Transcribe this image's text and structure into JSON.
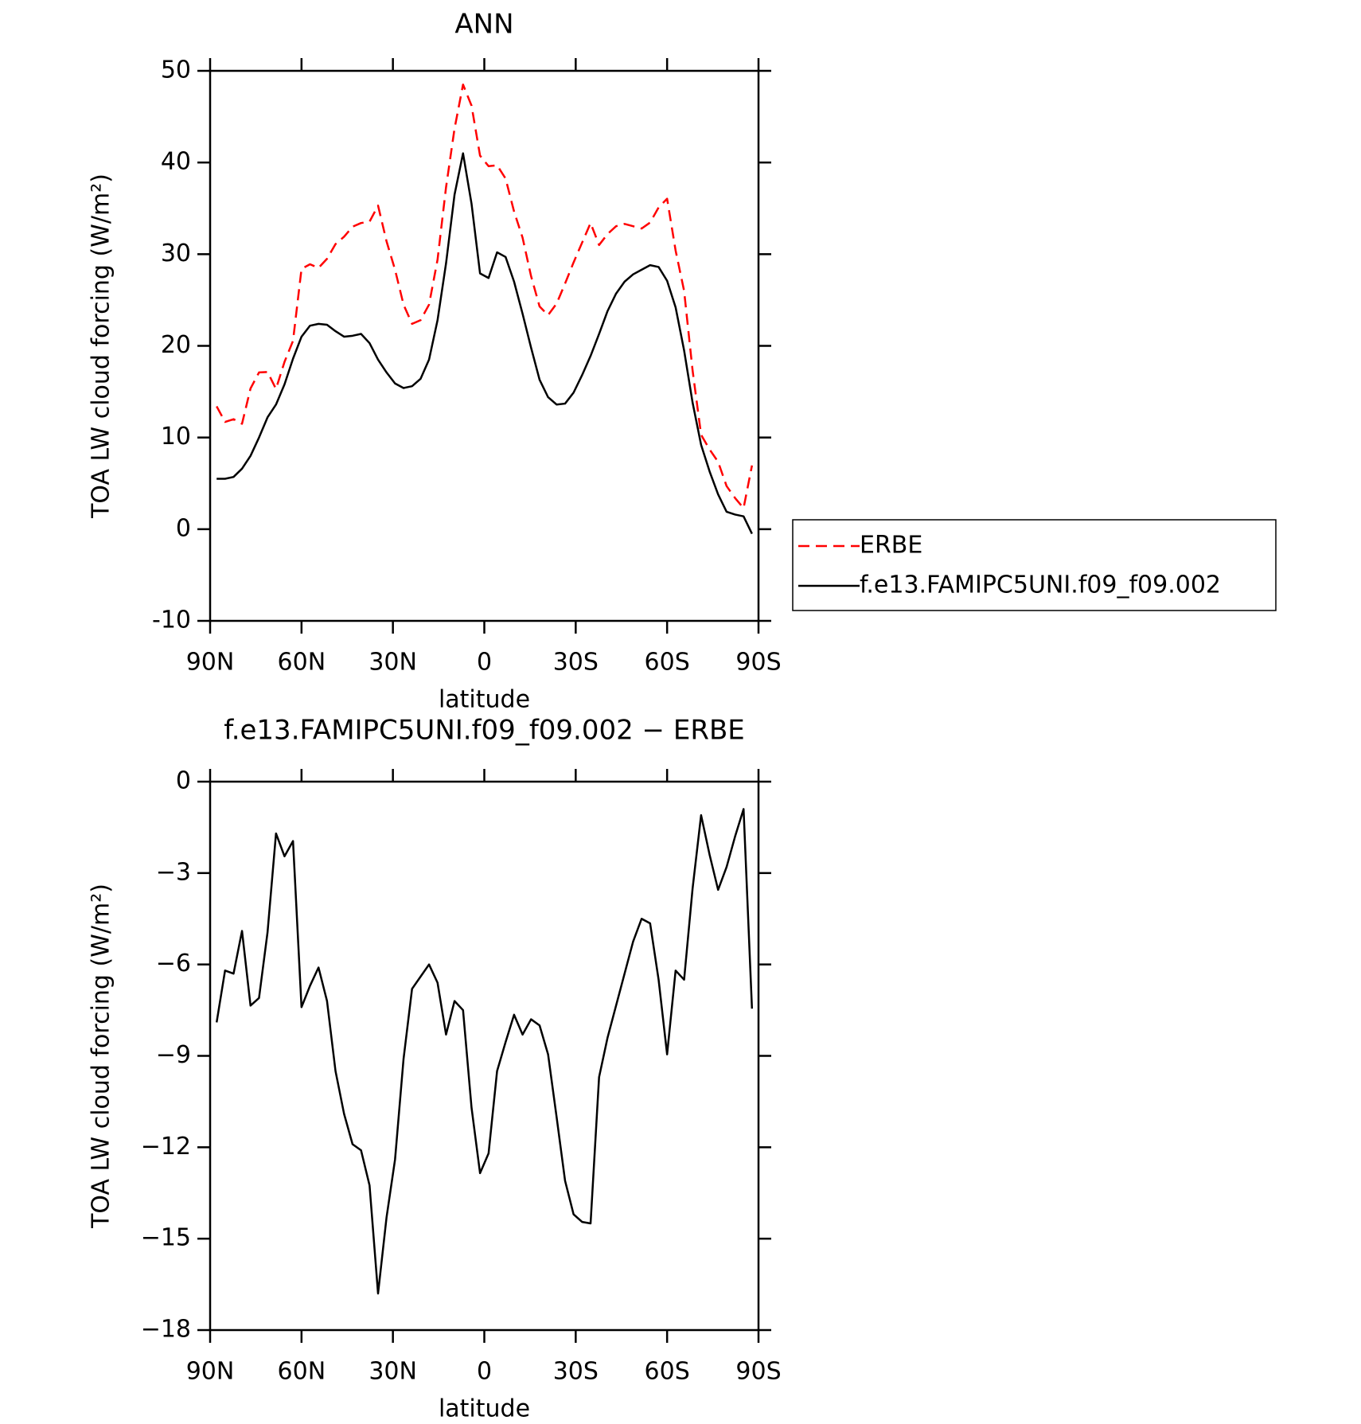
{
  "chart_data": [
    {
      "type": "line",
      "title": "ANN",
      "x_label": "latitude",
      "y_label": "TOA LW cloud forcing (W/m²)",
      "x": [
        87.86,
        85.1,
        82.31,
        79.53,
        76.74,
        73.95,
        71.16,
        68.37,
        65.58,
        62.79,
        60.0,
        57.21,
        54.42,
        51.63,
        48.84,
        46.04,
        43.25,
        40.46,
        37.67,
        34.88,
        32.09,
        29.3,
        26.51,
        23.72,
        20.93,
        18.14,
        15.35,
        12.56,
        9.77,
        6.98,
        4.19,
        1.4,
        -1.4,
        -4.19,
        -6.98,
        -9.77,
        -12.56,
        -15.35,
        -18.14,
        -20.93,
        -23.72,
        -26.51,
        -29.3,
        -32.09,
        -34.88,
        -37.67,
        -40.46,
        -43.25,
        -46.04,
        -48.84,
        -51.63,
        -54.42,
        -57.21,
        -60.0,
        -62.79,
        -65.58,
        -68.37,
        -71.16,
        -73.95,
        -76.74,
        -79.53,
        -82.31,
        -85.1,
        -87.86
      ],
      "xlim": [
        90,
        -90
      ],
      "xticks": [
        {
          "value": 90,
          "label": "90N"
        },
        {
          "value": 60,
          "label": "60N"
        },
        {
          "value": 30,
          "label": "30N"
        },
        0,
        {
          "value": -30,
          "label": "30S"
        },
        {
          "value": -60,
          "label": "60S"
        },
        {
          "value": -90,
          "label": "90S"
        }
      ],
      "ylim": [
        -10,
        50
      ],
      "yticks": [
        -10,
        0,
        10,
        20,
        30,
        40,
        50
      ],
      "grid": false,
      "legend": "right",
      "series": [
        {
          "name": "ERBE",
          "color": "#ff0000",
          "line_style": "dashed",
          "values": [
            13.4,
            11.7,
            12.0,
            11.5,
            15.35,
            17.1,
            17.15,
            15.3,
            18.25,
            20.55,
            28.4,
            28.9,
            28.5,
            29.5,
            31.1,
            31.9,
            33.0,
            33.4,
            33.55,
            35.3,
            31.4,
            28.3,
            24.5,
            22.4,
            22.8,
            24.5,
            29.4,
            37.3,
            43.7,
            48.5,
            46.2,
            40.75,
            39.6,
            39.7,
            38.25,
            34.65,
            31.8,
            27.6,
            24.3,
            23.35,
            24.6,
            26.8,
            29.1,
            31.25,
            33.4,
            31.0,
            32.2,
            33.05,
            33.3,
            33.05,
            32.8,
            33.45,
            35.1,
            36.05,
            30.4,
            26.0,
            17.3,
            10.3,
            8.7,
            7.35,
            4.7,
            3.4,
            2.3,
            6.95
          ]
        },
        {
          "name": "f.e13.FAMIPC5UNI.f09_f09.002",
          "color": "#000000",
          "line_style": "solid",
          "values": [
            5.5,
            5.5,
            5.7,
            6.6,
            8.0,
            10.0,
            12.2,
            13.6,
            15.8,
            18.6,
            21.0,
            22.2,
            22.4,
            22.3,
            21.6,
            21.0,
            21.1,
            21.3,
            20.3,
            18.5,
            17.1,
            15.9,
            15.4,
            15.6,
            16.4,
            18.5,
            22.8,
            29.0,
            36.5,
            41.0,
            35.5,
            27.9,
            27.4,
            30.2,
            29.7,
            27.0,
            23.5,
            19.8,
            16.3,
            14.4,
            13.6,
            13.7,
            14.9,
            16.8,
            18.9,
            21.3,
            23.8,
            25.7,
            27.0,
            27.8,
            28.3,
            28.8,
            28.6,
            27.1,
            24.2,
            19.5,
            13.8,
            9.2,
            6.3,
            3.8,
            1.9,
            1.6,
            1.4,
            -0.5
          ]
        }
      ]
    },
    {
      "type": "line",
      "title": "f.e13.FAMIPC5UNI.f09_f09.002 − ERBE",
      "x_label": "latitude",
      "y_label": "TOA LW cloud forcing (W/m²)",
      "x": [
        87.86,
        85.1,
        82.31,
        79.53,
        76.74,
        73.95,
        71.16,
        68.37,
        65.58,
        62.79,
        60.0,
        57.21,
        54.42,
        51.63,
        48.84,
        46.04,
        43.25,
        40.46,
        37.67,
        34.88,
        32.09,
        29.3,
        26.51,
        23.72,
        20.93,
        18.14,
        15.35,
        12.56,
        9.77,
        6.98,
        4.19,
        1.4,
        -1.4,
        -4.19,
        -6.98,
        -9.77,
        -12.56,
        -15.35,
        -18.14,
        -20.93,
        -23.72,
        -26.51,
        -29.3,
        -32.09,
        -34.88,
        -37.67,
        -40.46,
        -43.25,
        -46.04,
        -48.84,
        -51.63,
        -54.42,
        -57.21,
        -60.0,
        -62.79,
        -65.58,
        -68.37,
        -71.16,
        -73.95,
        -76.74,
        -79.53,
        -82.31,
        -85.1,
        -87.86
      ],
      "xlim": [
        90,
        -90
      ],
      "xticks": [
        {
          "value": 90,
          "label": "90N"
        },
        {
          "value": 60,
          "label": "60N"
        },
        {
          "value": 30,
          "label": "30N"
        },
        0,
        {
          "value": -30,
          "label": "30S"
        },
        {
          "value": -60,
          "label": "60S"
        },
        {
          "value": -90,
          "label": "90S"
        }
      ],
      "ylim": [
        -18,
        0
      ],
      "yticks": [
        {
          "value": -18,
          "label": "−18"
        },
        {
          "value": -15,
          "label": "−15"
        },
        {
          "value": -12,
          "label": "−12"
        },
        {
          "value": -9,
          "label": "−9"
        },
        {
          "value": -6,
          "label": "−6"
        },
        {
          "value": -3,
          "label": "−3"
        },
        0
      ],
      "grid": false,
      "series": [
        {
          "color": "#000000",
          "line_style": "solid",
          "values": [
            -7.9,
            -6.2,
            -6.3,
            -4.9,
            -7.35,
            -7.1,
            -4.95,
            -1.7,
            -2.45,
            -1.95,
            -7.4,
            -6.7,
            -6.1,
            -7.2,
            -9.5,
            -10.9,
            -11.9,
            -12.1,
            -13.25,
            -16.8,
            -14.3,
            -12.4,
            -9.1,
            -6.8,
            -6.4,
            -6.0,
            -6.6,
            -8.3,
            -7.2,
            -7.5,
            -10.7,
            -12.85,
            -12.2,
            -9.5,
            -8.55,
            -7.65,
            -8.3,
            -7.8,
            -8.0,
            -8.95,
            -11.0,
            -13.1,
            -14.2,
            -14.45,
            -14.5,
            -9.7,
            -8.4,
            -7.35,
            -6.3,
            -5.25,
            -4.5,
            -4.65,
            -6.5,
            -8.95,
            -6.2,
            -6.5,
            -3.5,
            -1.1,
            -2.4,
            -3.55,
            -2.8,
            -1.8,
            -0.9,
            -7.45
          ]
        }
      ]
    }
  ]
}
